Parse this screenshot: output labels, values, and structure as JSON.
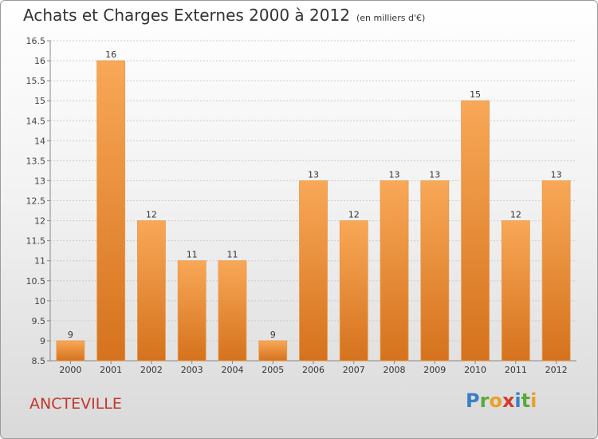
{
  "title": "Achats et Charges Externes 2000 à 2012",
  "subtitle": "(en milliers d'€)",
  "commune": "ANCTEVILLE",
  "logo": {
    "letters": [
      "P",
      "r",
      "o",
      "x",
      "i",
      "t",
      "i"
    ],
    "colors": [
      "#3a7fc4",
      "#5aa93a",
      "#e9a126",
      "#d33b2e",
      "#3a7fc4",
      "#5aa93a",
      "#e9a126"
    ]
  },
  "colors": {
    "bar_light": "#f8a857",
    "bar_dark": "#d5721d",
    "axis": "#888888",
    "grid": "#cccccc"
  },
  "chart_data": {
    "type": "bar",
    "title": "Achats et Charges Externes 2000 à 2012",
    "categories": [
      "2000",
      "2001",
      "2002",
      "2003",
      "2004",
      "2005",
      "2006",
      "2007",
      "2008",
      "2009",
      "2010",
      "2011",
      "2012"
    ],
    "values": [
      9,
      16,
      12,
      11,
      11,
      9,
      13,
      12,
      13,
      13,
      15,
      12,
      13
    ],
    "value_labels": [
      "9",
      "16",
      "12",
      "11",
      "11",
      "9",
      "13",
      "12",
      "13",
      "13",
      "15",
      "12",
      "13"
    ],
    "ylim": [
      8.5,
      16.5
    ],
    "yticks": [
      "8.5",
      "9",
      "9.5",
      "10",
      "10.5",
      "11",
      "11.5",
      "12",
      "12.5",
      "13",
      "13.5",
      "14",
      "14.5",
      "15",
      "15.5",
      "16",
      "16.5"
    ],
    "grid": true,
    "legend": "none"
  }
}
